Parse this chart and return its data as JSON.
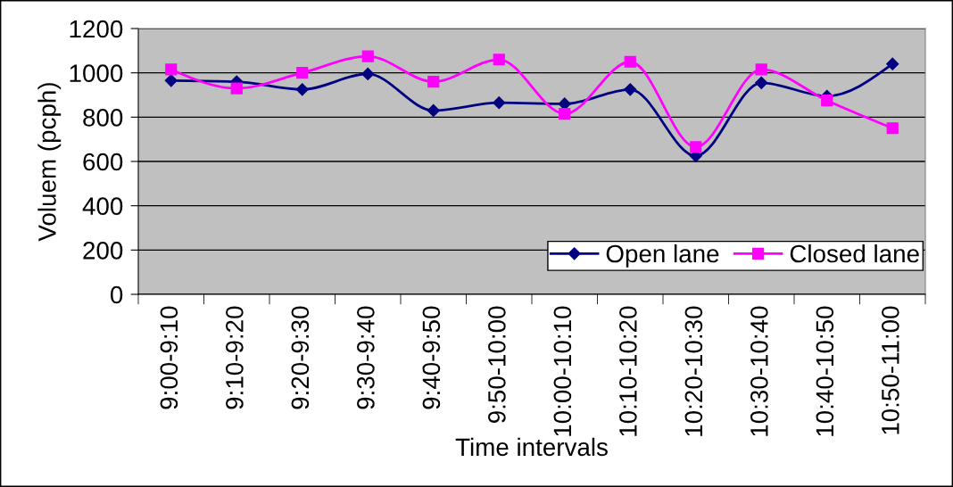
{
  "chart_data": {
    "type": "line",
    "xlabel": "Time intervals",
    "ylabel": "Voluem (pcph)",
    "categories": [
      "9:00-9:10",
      "9:10-9:20",
      "9:20-9:30",
      "9:30-9:40",
      "9:40-9:50",
      "9:50-10:00",
      "10:00-10:10",
      "10:10-10:20",
      "10:20-10:30",
      "10:30-10:40",
      "10:40-10:50",
      "10:50-11:00"
    ],
    "series": [
      {
        "name": "Open lane",
        "color": "#000080",
        "marker": "diamond",
        "values": [
          965,
          960,
          925,
          995,
          830,
          865,
          860,
          925,
          625,
          955,
          895,
          1040
        ]
      },
      {
        "name": "Closed lane",
        "color": "#ff00ff",
        "marker": "square",
        "values": [
          1015,
          930,
          1000,
          1075,
          960,
          1060,
          815,
          1050,
          665,
          1015,
          875,
          750
        ]
      }
    ],
    "ylim": [
      0,
      1200
    ],
    "yticks": [
      0,
      200,
      400,
      600,
      800,
      1000,
      1200
    ],
    "grid": "y",
    "legend": "bottom right",
    "line_style": "solid"
  }
}
